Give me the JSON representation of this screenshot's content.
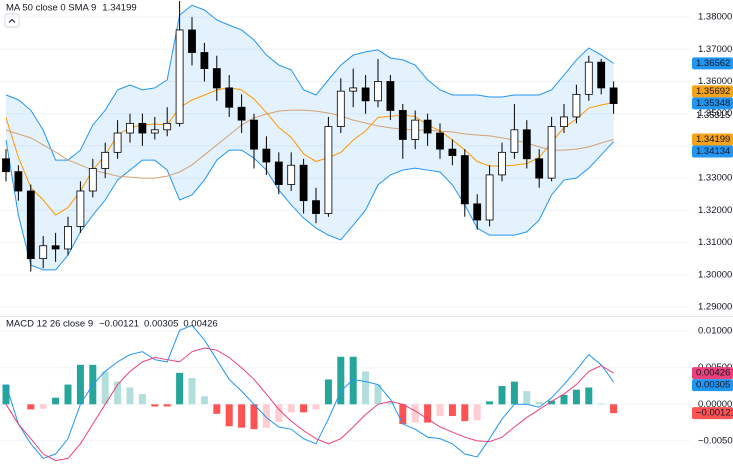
{
  "chart_data": [
    {
      "type": "candlestick",
      "legend": {
        "text": "MA 50 close 0 SMA 9",
        "value": 1.34199,
        "color": "#f7a21b"
      },
      "open": [
        1.336,
        1.332,
        1.326,
        1.305,
        1.309,
        1.308,
        1.315,
        1.326,
        1.333,
        1.338,
        1.344,
        1.347,
        1.344,
        1.345,
        1.347,
        1.376,
        1.369,
        1.364,
        1.358,
        1.352,
        1.348,
        1.339,
        1.335,
        1.328,
        1.334,
        1.323,
        1.319,
        1.346,
        1.357,
        1.358,
        1.354,
        1.36,
        1.351,
        1.342,
        1.348,
        1.344,
        1.339,
        1.337,
        1.322,
        1.317,
        1.331,
        1.338,
        1.345,
        1.336,
        1.33,
        1.346,
        1.349,
        1.356,
        1.366,
        1.358
      ],
      "high": [
        1.339,
        1.334,
        1.328,
        1.312,
        1.313,
        1.318,
        1.329,
        1.336,
        1.341,
        1.348,
        1.35,
        1.35,
        1.349,
        1.352,
        1.385,
        1.38,
        1.372,
        1.368,
        1.362,
        1.356,
        1.35,
        1.343,
        1.338,
        1.338,
        1.336,
        1.327,
        1.349,
        1.361,
        1.364,
        1.362,
        1.367,
        1.362,
        1.353,
        1.351,
        1.35,
        1.347,
        1.342,
        1.339,
        1.325,
        1.334,
        1.341,
        1.353,
        1.348,
        1.339,
        1.349,
        1.353,
        1.359,
        1.368,
        1.367,
        1.36
      ],
      "low": [
        1.329,
        1.323,
        1.301,
        1.302,
        1.304,
        1.306,
        1.313,
        1.324,
        1.33,
        1.336,
        1.341,
        1.34,
        1.342,
        1.343,
        1.346,
        1.365,
        1.36,
        1.354,
        1.349,
        1.344,
        1.333,
        1.331,
        1.325,
        1.326,
        1.319,
        1.316,
        1.318,
        1.344,
        1.352,
        1.35,
        1.352,
        1.348,
        1.336,
        1.339,
        1.34,
        1.336,
        1.334,
        1.318,
        1.314,
        1.315,
        1.329,
        1.336,
        1.333,
        1.327,
        1.329,
        1.344,
        1.347,
        1.354,
        1.356,
        1.35
      ],
      "close": [
        1.332,
        1.326,
        1.305,
        1.309,
        1.308,
        1.315,
        1.326,
        1.333,
        1.338,
        1.344,
        1.347,
        1.344,
        1.345,
        1.347,
        1.376,
        1.369,
        1.364,
        1.358,
        1.352,
        1.348,
        1.339,
        1.335,
        1.328,
        1.334,
        1.323,
        1.319,
        1.346,
        1.357,
        1.358,
        1.354,
        1.36,
        1.351,
        1.342,
        1.348,
        1.344,
        1.339,
        1.337,
        1.322,
        1.317,
        1.331,
        1.338,
        1.345,
        1.336,
        1.33,
        1.346,
        1.349,
        1.356,
        1.366,
        1.358,
        1.35315
      ],
      "up_color": "#ffffff",
      "down_color": "#000000",
      "wick_color": "#000000",
      "band_fill": "rgba(33,150,243,0.12)",
      "series": [
        {
          "color": "#2196f3",
          "values": [
            1.3558,
            1.3543,
            1.3511,
            1.3449,
            1.3356,
            1.3356,
            1.3387,
            1.3465,
            1.3511,
            1.3574,
            1.3589,
            1.3574,
            1.358,
            1.3605,
            1.3806,
            1.3837,
            1.3822,
            1.3791,
            1.3775,
            1.376,
            1.3729,
            1.3682,
            1.3651,
            1.3636,
            1.3574,
            1.3558,
            1.3605,
            1.3651,
            1.3682,
            1.3692,
            1.3698,
            1.3673,
            1.3667,
            1.3651,
            1.3605,
            1.3574,
            1.3558,
            1.3558,
            1.3558,
            1.3552,
            1.3552,
            1.3558,
            1.3558,
            1.3558,
            1.3574,
            1.362,
            1.3667,
            1.3704,
            1.3682,
            1.36562
          ]
        },
        {
          "color": "#2196f3",
          "values": [
            1.3418,
            1.3185,
            1.303,
            1.3015,
            1.3015,
            1.3061,
            1.3133,
            1.3185,
            1.3232,
            1.3294,
            1.3325,
            1.3356,
            1.3356,
            1.3325,
            1.3232,
            1.3248,
            1.3294,
            1.3356,
            1.3387,
            1.3387,
            1.3362,
            1.3325,
            1.3263,
            1.3217,
            1.3176,
            1.3145,
            1.3123,
            1.3108,
            1.3154,
            1.3201,
            1.3279,
            1.331,
            1.3325,
            1.3331,
            1.3325,
            1.3319,
            1.3279,
            1.3217,
            1.3145,
            1.3123,
            1.3123,
            1.3123,
            1.3133,
            1.317,
            1.3248,
            1.3294,
            1.33,
            1.3331,
            1.3372,
            1.34134
          ]
        },
        {
          "color": "#ff9800",
          "values": [
            1.3488,
            1.3364,
            1.32705,
            1.3232,
            1.31855,
            1.32085,
            1.326,
            1.3325,
            1.33715,
            1.3434,
            1.3457,
            1.3465,
            1.3468,
            1.3465,
            1.3519,
            1.35425,
            1.3558,
            1.35735,
            1.3581,
            1.35735,
            1.35455,
            1.35035,
            1.3457,
            1.34265,
            1.3375,
            1.33515,
            1.3364,
            1.33795,
            1.3418,
            1.34465,
            1.34885,
            1.34915,
            1.3496,
            1.3491,
            1.3465,
            1.34465,
            1.34185,
            1.33875,
            1.33515,
            1.33375,
            1.33375,
            1.33405,
            1.33455,
            1.3364,
            1.3411,
            1.3457,
            1.34835,
            1.35175,
            1.3527,
            1.35348
          ]
        },
        {
          "color": "#d4a373",
          "values": [
            1.3449,
            1.3437,
            1.3425,
            1.3403,
            1.3381,
            1.3356,
            1.3341,
            1.3325,
            1.3316,
            1.3306,
            1.3303,
            1.33,
            1.33,
            1.3306,
            1.3319,
            1.3341,
            1.3372,
            1.3403,
            1.3434,
            1.3465,
            1.3487,
            1.3499,
            1.3508,
            1.3511,
            1.3511,
            1.3508,
            1.3502,
            1.3493,
            1.348,
            1.3471,
            1.3462,
            1.3456,
            1.3452,
            1.3449,
            1.3449,
            1.3446,
            1.3443,
            1.3437,
            1.3434,
            1.3431,
            1.3425,
            1.3418,
            1.3409,
            1.3397,
            1.3387,
            1.3387,
            1.339,
            1.3397,
            1.3409,
            1.34199
          ]
        }
      ],
      "ylim": [
        1.2875,
        1.3853
      ],
      "yticks": [
        {
          "value": 1.29,
          "label": "1.29000"
        },
        {
          "value": 1.3,
          "label": "1.30000"
        },
        {
          "value": 1.31,
          "label": "1.31000"
        },
        {
          "value": 1.32,
          "label": "1.32000"
        },
        {
          "value": 1.33,
          "label": "1.33000"
        },
        {
          "value": 1.34,
          "label": "1.34000"
        },
        {
          "value": 1.35,
          "label": "1.35000"
        },
        {
          "value": 1.36,
          "label": "1.36000"
        },
        {
          "value": 1.37,
          "label": "1.37000"
        },
        {
          "value": 1.38,
          "label": "1.38000"
        }
      ],
      "grid": true,
      "tags": [
        {
          "value": 1.36562,
          "color": "#2196f3"
        },
        {
          "value": 1.35692,
          "color": "#f7a21b"
        },
        {
          "value": 1.35348,
          "color": "#2196f3"
        },
        {
          "value": 1.35315
        },
        {
          "value": 1.34199,
          "color": "#f7a21b"
        },
        {
          "value": 1.34134,
          "color": "#2196f3"
        }
      ]
    },
    {
      "type": "macd",
      "legend": {
        "text": "MACD 12 26 close 9",
        "values": [
          {
            "value": -0.00121,
            "label": "−0.00121",
            "color": "#ff5252"
          },
          {
            "value": 0.00305,
            "color": "#2196f3"
          },
          {
            "value": 0.00426,
            "color": "#ec407a"
          }
        ]
      },
      "histogram": {
        "colors": [
          "#26a69a",
          "#b2dfdb",
          "#ffcdd2",
          "#ff5252"
        ],
        "values": [
          0.0027,
          0,
          -0.0007,
          -0.0006,
          0.0009,
          0.0027,
          0.0054,
          0.0054,
          0.0045,
          0.0031,
          0.0023,
          0.0014,
          -0.0003,
          -0.0003,
          0.0043,
          0.0036,
          0.0011,
          -0.0013,
          -0.003,
          -0.0032,
          -0.0034,
          -0.0032,
          -0.0024,
          -0.0011,
          -0.0011,
          -0.0007,
          0.0034,
          0.0065,
          0.0065,
          0.0045,
          0.0027,
          0.0003,
          -0.0027,
          -0.0025,
          -0.0025,
          -0.0016,
          -0.0016,
          -0.0023,
          -0.0022,
          0.0004,
          0.0025,
          0.0031,
          0.0018,
          0.0003,
          0.0005,
          0.0013,
          0.002,
          0.0023,
          0.0001,
          -0.00121
        ]
      },
      "series": [
        {
          "color": "#2196f3",
          "values": [
            0.0027,
            -0.0027,
            -0.0054,
            -0.0074,
            -0.0068,
            -0.0047,
            0,
            0.0027,
            0.0045,
            0.0058,
            0.0068,
            0.0072,
            0.0061,
            0.0058,
            0.0101,
            0.0108,
            0.0088,
            0.0061,
            0.0034,
            0.0018,
            0,
            -0.0018,
            -0.0031,
            -0.0034,
            -0.0047,
            -0.0054,
            -0.002,
            0.0018,
            0.0034,
            0.0031,
            0.0027,
            0.0007,
            -0.0027,
            -0.0034,
            -0.0045,
            -0.0047,
            -0.0054,
            -0.0068,
            -0.0072,
            -0.0047,
            -0.002,
            0,
            0,
            -0.0004,
            0.0009,
            0.0027,
            0.0047,
            0.0068,
            0.0054,
            0.00305
          ]
        },
        {
          "color": "#ec407a",
          "values": [
            0,
            -0.0027,
            -0.0047,
            -0.0068,
            -0.0077,
            -0.0074,
            -0.0054,
            -0.0027,
            0,
            0.0027,
            0.0045,
            0.0058,
            0.0064,
            0.0061,
            0.0058,
            0.0072,
            0.0077,
            0.0074,
            0.0064,
            0.005,
            0.0034,
            0.0014,
            -0.0007,
            -0.0023,
            -0.0036,
            -0.0047,
            -0.0054,
            -0.0047,
            -0.0031,
            -0.0014,
            0,
            0.0004,
            0,
            -0.0009,
            -0.002,
            -0.0031,
            -0.0038,
            -0.0045,
            -0.005,
            -0.0051,
            -0.0045,
            -0.0031,
            -0.0018,
            -0.0007,
            0.0004,
            0.0014,
            0.0027,
            0.0045,
            0.0053,
            0.00426
          ]
        }
      ],
      "ylim": [
        -0.0083,
        0.0118
      ],
      "yticks": [
        {
          "value": -0.005,
          "label": "−0.00500"
        },
        {
          "value": 0,
          "label": "0.00000"
        },
        {
          "value": 0.005,
          "label": "0.00500"
        },
        {
          "value": 0.01,
          "label": "0.01000"
        }
      ],
      "grid": true,
      "tags": [
        {
          "value": 0.00426,
          "color": "#ec407a"
        },
        {
          "value": 0.00305,
          "color": "#2196f3"
        },
        {
          "value": -0.00121,
          "label": "−0.00121",
          "color": "#ff5252"
        }
      ]
    }
  ]
}
